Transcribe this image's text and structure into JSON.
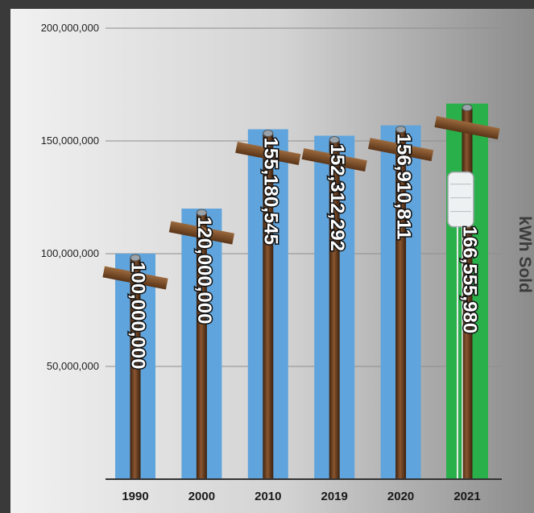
{
  "chart_data": {
    "type": "bar",
    "categories": [
      "1990",
      "2000",
      "2010",
      "2019",
      "2020",
      "2021"
    ],
    "values": [
      100000000,
      120000000,
      155180545,
      152312292,
      156910811,
      166555980
    ],
    "value_labels": [
      "100,000,000",
      "120,000,000",
      "155,180,545",
      "152,312,292",
      "156,910,811",
      "166,555,980"
    ],
    "ylabel": "kWh Sold",
    "ylim": [
      0,
      200000000
    ],
    "yticks": [
      50000000,
      100000000,
      150000000,
      200000000
    ],
    "ytick_labels": [
      "50,000,000",
      "100,000,000",
      "150,000,000",
      "200,000,000"
    ],
    "grid": true,
    "colors": {
      "bar_default": "#5fa4dc",
      "bar_highlight": "#2ab04a",
      "pole": "#7a4a26",
      "crossarm": "#8a5a32",
      "grid": "#8e8e8e"
    },
    "highlight_index": 5
  }
}
